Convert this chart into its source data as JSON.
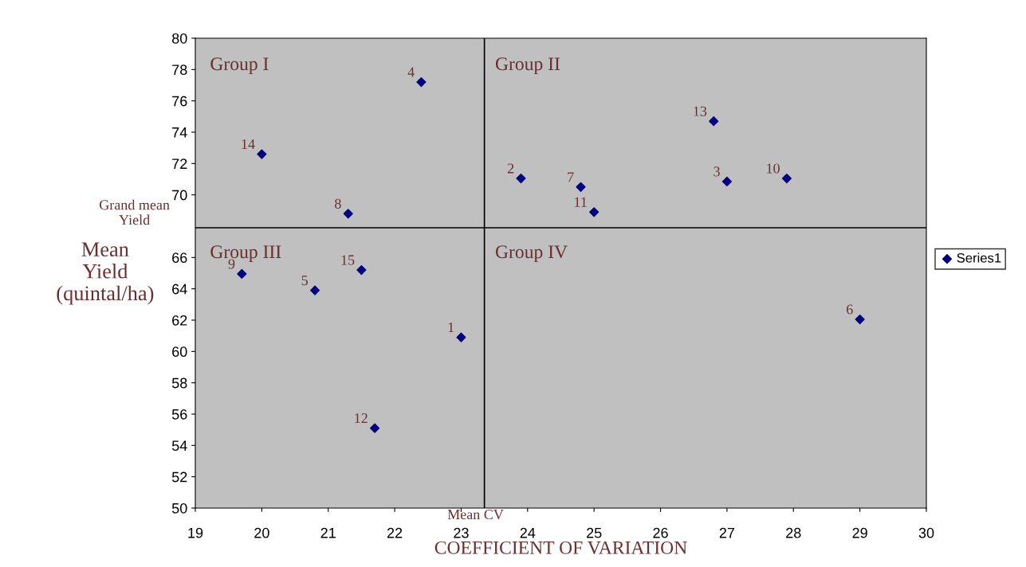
{
  "chart_data": {
    "type": "scatter",
    "xlabel": "COEFFICIENT OF VARIATION",
    "ylabel": "Mean\nYield\n(quintal/ha)",
    "x": [
      23.0,
      23.9,
      27.0,
      22.4,
      20.8,
      29.0,
      24.8,
      21.3,
      19.7,
      27.9,
      25.0,
      21.7,
      26.8,
      20.0,
      21.5
    ],
    "series": [
      {
        "name": "Series1",
        "color": "#000080",
        "values": [
          60.9,
          71.05,
          70.85,
          77.2,
          63.9,
          62.05,
          70.5,
          68.8,
          64.95,
          71.05,
          68.9,
          55.1,
          74.7,
          72.6,
          65.2
        ]
      }
    ],
    "xlim": [
      19,
      30
    ],
    "xticks": [
      19,
      20,
      21,
      22,
      23,
      24,
      25,
      26,
      27,
      28,
      29,
      30
    ],
    "ylim": [
      50,
      80
    ],
    "yticks": [
      50,
      52,
      54,
      56,
      58,
      60,
      62,
      64,
      66,
      70,
      72,
      74,
      76,
      78,
      80
    ],
    "ref_lines": [
      {
        "axis": "x",
        "value": 23.35,
        "label": "Mean CV",
        "color": "#000000"
      },
      {
        "axis": "y",
        "value": 67.9,
        "label": "Grand mean\nYield",
        "color": "#000000"
      }
    ],
    "annotations": [
      "Group I",
      "Group II",
      "Group III",
      "Group IV",
      {
        "text": "1",
        "x": 23.0,
        "y": 60.9
      },
      {
        "text": "2",
        "x": 23.9,
        "y": 71.05
      },
      {
        "text": "3",
        "x": 27.0,
        "y": 70.85
      },
      {
        "text": "4",
        "x": 22.4,
        "y": 77.2
      },
      {
        "text": "5",
        "x": 20.8,
        "y": 63.9
      },
      {
        "text": "6",
        "x": 29.0,
        "y": 62.05
      },
      {
        "text": "7",
        "x": 24.8,
        "y": 70.5
      },
      {
        "text": "8",
        "x": 21.3,
        "y": 68.8
      },
      {
        "text": "9",
        "x": 19.7,
        "y": 64.95
      },
      {
        "text": "10",
        "x": 27.9,
        "y": 71.05
      },
      {
        "text": "11",
        "x": 25.0,
        "y": 68.9
      },
      {
        "text": "12",
        "x": 21.7,
        "y": 55.1
      },
      {
        "text": "13",
        "x": 26.8,
        "y": 74.7
      },
      {
        "text": "14",
        "x": 20.0,
        "y": 72.6
      },
      {
        "text": "15",
        "x": 21.5,
        "y": 65.2
      }
    ],
    "marker": "diamond",
    "grid": false,
    "legend": "right"
  }
}
